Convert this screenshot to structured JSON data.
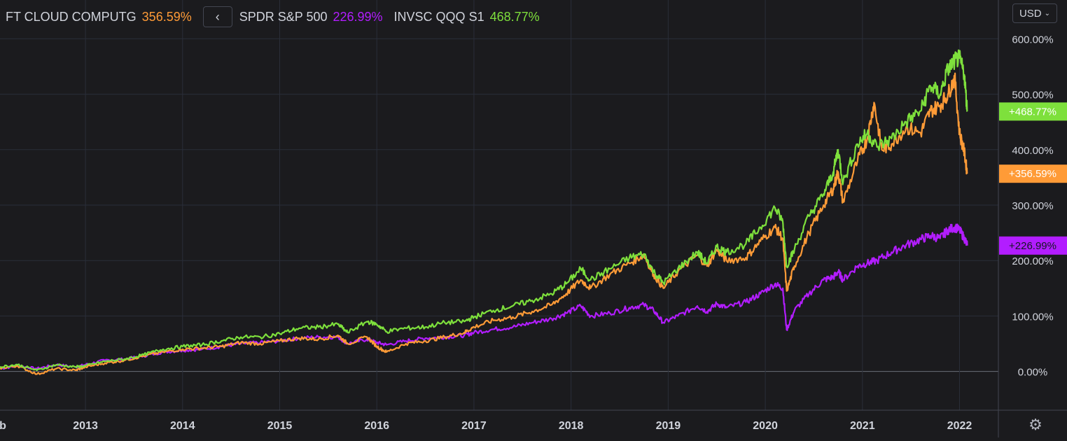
{
  "legend": {
    "items": [
      {
        "name": "FT CLOUD COMPUTG",
        "value": "356.59%",
        "color": "#ff9b37"
      },
      {
        "name": "SPDR S&P 500",
        "value": "226.99%",
        "color": "#b21dff"
      },
      {
        "name": "INVSC QQQ S1",
        "value": "468.77%",
        "color": "#7ee03c"
      }
    ],
    "collapse_icon": "chevron-left-icon"
  },
  "currency": {
    "label": "USD",
    "icon": "chevron-down-icon"
  },
  "settings_icon": "gear-icon",
  "chart_data": {
    "type": "line",
    "x_tick_labels": [
      "b",
      "2013",
      "2014",
      "2015",
      "2016",
      "2017",
      "2018",
      "2019",
      "2020",
      "2021",
      "2022"
    ],
    "y_tick_labels": [
      "600.00%",
      "500.00%",
      "400.00%",
      "300.00%",
      "200.00%",
      "100.00%",
      "0.00%"
    ],
    "y_ticks": [
      600,
      500,
      400,
      300,
      200,
      100,
      0
    ],
    "ylim": [
      -70,
      670
    ],
    "xlim": [
      2012.12,
      2022.4
    ],
    "grid": true,
    "series": [
      {
        "name": "INVSC QQQ S1",
        "color": "#7ee03c",
        "last_label": "+468.77%",
        "points": [
          [
            2012.12,
            8
          ],
          [
            2012.3,
            12
          ],
          [
            2012.5,
            2
          ],
          [
            2012.7,
            12
          ],
          [
            2012.9,
            8
          ],
          [
            2013.0,
            10
          ],
          [
            2013.2,
            18
          ],
          [
            2013.4,
            22
          ],
          [
            2013.6,
            30
          ],
          [
            2013.8,
            40
          ],
          [
            2014.0,
            45
          ],
          [
            2014.2,
            48
          ],
          [
            2014.4,
            55
          ],
          [
            2014.6,
            62
          ],
          [
            2014.8,
            62
          ],
          [
            2015.0,
            68
          ],
          [
            2015.2,
            78
          ],
          [
            2015.4,
            80
          ],
          [
            2015.6,
            85
          ],
          [
            2015.7,
            70
          ],
          [
            2015.9,
            90
          ],
          [
            2016.0,
            85
          ],
          [
            2016.1,
            72
          ],
          [
            2016.3,
            78
          ],
          [
            2016.5,
            80
          ],
          [
            2016.7,
            88
          ],
          [
            2016.9,
            90
          ],
          [
            2017.0,
            98
          ],
          [
            2017.2,
            110
          ],
          [
            2017.4,
            118
          ],
          [
            2017.6,
            128
          ],
          [
            2017.8,
            140
          ],
          [
            2017.95,
            158
          ],
          [
            2018.1,
            185
          ],
          [
            2018.2,
            165
          ],
          [
            2018.4,
            185
          ],
          [
            2018.6,
            205
          ],
          [
            2018.75,
            212
          ],
          [
            2018.85,
            180
          ],
          [
            2018.95,
            160
          ],
          [
            2019.1,
            185
          ],
          [
            2019.3,
            215
          ],
          [
            2019.4,
            195
          ],
          [
            2019.5,
            225
          ],
          [
            2019.6,
            215
          ],
          [
            2019.8,
            230
          ],
          [
            2019.95,
            260
          ],
          [
            2020.1,
            295
          ],
          [
            2020.18,
            270
          ],
          [
            2020.22,
            190
          ],
          [
            2020.3,
            220
          ],
          [
            2020.45,
            280
          ],
          [
            2020.6,
            320
          ],
          [
            2020.7,
            360
          ],
          [
            2020.75,
            400
          ],
          [
            2020.8,
            340
          ],
          [
            2020.95,
            410
          ],
          [
            2021.05,
            430
          ],
          [
            2021.15,
            405
          ],
          [
            2021.3,
            420
          ],
          [
            2021.45,
            450
          ],
          [
            2021.6,
            470
          ],
          [
            2021.7,
            515
          ],
          [
            2021.8,
            500
          ],
          [
            2021.88,
            545
          ],
          [
            2021.95,
            560
          ],
          [
            2022.0,
            565
          ],
          [
            2022.05,
            535
          ],
          [
            2022.08,
            468.77
          ]
        ]
      },
      {
        "name": "FT CLOUD COMPUTG",
        "color": "#ff9b37",
        "last_label": "+356.59%",
        "points": [
          [
            2012.12,
            6
          ],
          [
            2012.3,
            10
          ],
          [
            2012.5,
            -5
          ],
          [
            2012.7,
            5
          ],
          [
            2012.9,
            2
          ],
          [
            2013.0,
            8
          ],
          [
            2013.2,
            15
          ],
          [
            2013.4,
            20
          ],
          [
            2013.6,
            28
          ],
          [
            2013.8,
            35
          ],
          [
            2014.0,
            40
          ],
          [
            2014.2,
            42
          ],
          [
            2014.4,
            45
          ],
          [
            2014.6,
            52
          ],
          [
            2014.8,
            50
          ],
          [
            2015.0,
            55
          ],
          [
            2015.2,
            60
          ],
          [
            2015.4,
            58
          ],
          [
            2015.6,
            65
          ],
          [
            2015.7,
            50
          ],
          [
            2015.9,
            62
          ],
          [
            2016.0,
            45
          ],
          [
            2016.1,
            35
          ],
          [
            2016.3,
            50
          ],
          [
            2016.5,
            55
          ],
          [
            2016.7,
            62
          ],
          [
            2016.9,
            70
          ],
          [
            2017.0,
            80
          ],
          [
            2017.2,
            92
          ],
          [
            2017.4,
            98
          ],
          [
            2017.6,
            108
          ],
          [
            2017.8,
            120
          ],
          [
            2017.95,
            140
          ],
          [
            2018.1,
            165
          ],
          [
            2018.2,
            150
          ],
          [
            2018.4,
            175
          ],
          [
            2018.6,
            195
          ],
          [
            2018.75,
            210
          ],
          [
            2018.85,
            175
          ],
          [
            2018.95,
            150
          ],
          [
            2019.1,
            180
          ],
          [
            2019.3,
            210
          ],
          [
            2019.4,
            190
          ],
          [
            2019.5,
            220
          ],
          [
            2019.6,
            200
          ],
          [
            2019.8,
            205
          ],
          [
            2019.95,
            235
          ],
          [
            2020.1,
            260
          ],
          [
            2020.18,
            240
          ],
          [
            2020.22,
            145
          ],
          [
            2020.3,
            190
          ],
          [
            2020.45,
            250
          ],
          [
            2020.6,
            300
          ],
          [
            2020.7,
            330
          ],
          [
            2020.75,
            360
          ],
          [
            2020.8,
            305
          ],
          [
            2020.95,
            380
          ],
          [
            2021.05,
            420
          ],
          [
            2021.12,
            485
          ],
          [
            2021.2,
            400
          ],
          [
            2021.3,
            410
          ],
          [
            2021.45,
            440
          ],
          [
            2021.6,
            430
          ],
          [
            2021.7,
            470
          ],
          [
            2021.8,
            480
          ],
          [
            2021.88,
            500
          ],
          [
            2021.95,
            530
          ],
          [
            2022.0,
            430
          ],
          [
            2022.05,
            395
          ],
          [
            2022.08,
            356.59
          ]
        ]
      },
      {
        "name": "SPDR S&P 500",
        "color": "#b21dff",
        "last_label": "+226.99%",
        "points": [
          [
            2012.12,
            5
          ],
          [
            2012.3,
            10
          ],
          [
            2012.5,
            5
          ],
          [
            2012.7,
            12
          ],
          [
            2012.9,
            8
          ],
          [
            2013.0,
            12
          ],
          [
            2013.2,
            20
          ],
          [
            2013.4,
            22
          ],
          [
            2013.6,
            28
          ],
          [
            2013.8,
            35
          ],
          [
            2014.0,
            38
          ],
          [
            2014.2,
            40
          ],
          [
            2014.4,
            45
          ],
          [
            2014.6,
            50
          ],
          [
            2014.8,
            52
          ],
          [
            2015.0,
            55
          ],
          [
            2015.2,
            60
          ],
          [
            2015.4,
            62
          ],
          [
            2015.6,
            62
          ],
          [
            2015.7,
            50
          ],
          [
            2015.9,
            58
          ],
          [
            2016.0,
            52
          ],
          [
            2016.1,
            48
          ],
          [
            2016.3,
            55
          ],
          [
            2016.5,
            60
          ],
          [
            2016.7,
            62
          ],
          [
            2016.9,
            65
          ],
          [
            2017.0,
            70
          ],
          [
            2017.2,
            76
          ],
          [
            2017.4,
            80
          ],
          [
            2017.6,
            88
          ],
          [
            2017.8,
            95
          ],
          [
            2017.95,
            105
          ],
          [
            2018.1,
            118
          ],
          [
            2018.2,
            100
          ],
          [
            2018.4,
            105
          ],
          [
            2018.6,
            115
          ],
          [
            2018.75,
            120
          ],
          [
            2018.85,
            110
          ],
          [
            2018.95,
            88
          ],
          [
            2019.1,
            100
          ],
          [
            2019.3,
            118
          ],
          [
            2019.4,
            108
          ],
          [
            2019.5,
            122
          ],
          [
            2019.6,
            115
          ],
          [
            2019.8,
            125
          ],
          [
            2019.95,
            140
          ],
          [
            2020.1,
            158
          ],
          [
            2020.18,
            150
          ],
          [
            2020.22,
            75
          ],
          [
            2020.3,
            110
          ],
          [
            2020.45,
            140
          ],
          [
            2020.6,
            165
          ],
          [
            2020.7,
            170
          ],
          [
            2020.75,
            180
          ],
          [
            2020.8,
            165
          ],
          [
            2020.95,
            190
          ],
          [
            2021.05,
            195
          ],
          [
            2021.15,
            200
          ],
          [
            2021.3,
            215
          ],
          [
            2021.45,
            228
          ],
          [
            2021.6,
            238
          ],
          [
            2021.7,
            245
          ],
          [
            2021.8,
            240
          ],
          [
            2021.88,
            255
          ],
          [
            2021.95,
            260
          ],
          [
            2022.0,
            255
          ],
          [
            2022.05,
            240
          ],
          [
            2022.08,
            226.99
          ]
        ]
      }
    ]
  }
}
